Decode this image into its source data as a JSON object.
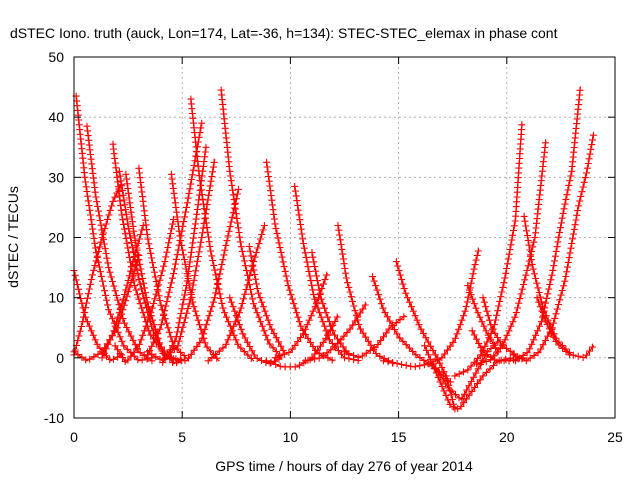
{
  "chart_data": {
    "type": "scatter",
    "title": "dSTEC Iono. truth (auck, Lon=174, Lat=-36, h=134): STEC-STEC_elemax in phase cont",
    "xlabel": "GPS time / hours of day 276 of year 2014",
    "ylabel": "dSTEC  / TECUs",
    "xlim": [
      0,
      25
    ],
    "ylim": [
      -10,
      50
    ],
    "xticks": [
      "0",
      "5",
      "10",
      "15",
      "20",
      "25"
    ],
    "yticks": [
      "-10",
      "0",
      "10",
      "20",
      "30",
      "40",
      "50"
    ],
    "grid": true,
    "marker": "plus",
    "color": "#ff0000",
    "series": [
      {
        "points": [
          [
            0.1,
            43.5
          ],
          [
            0.5,
            30
          ],
          [
            1.0,
            18
          ],
          [
            1.6,
            8
          ],
          [
            2.3,
            2
          ],
          [
            3.0,
            -0.5
          ],
          [
            3.6,
            0
          ]
        ]
      },
      {
        "points": [
          [
            0.0,
            0.5
          ],
          [
            0.4,
            6
          ],
          [
            0.8,
            13
          ],
          [
            1.3,
            20
          ],
          [
            1.8,
            26
          ],
          [
            2.2,
            29
          ]
        ]
      },
      {
        "points": [
          [
            0.0,
            14.5
          ],
          [
            0.5,
            7
          ],
          [
            1.1,
            2
          ],
          [
            1.7,
            -0.5
          ],
          [
            2.2,
            0.5
          ]
        ]
      },
      {
        "points": [
          [
            0.6,
            38.5
          ],
          [
            1.0,
            27
          ],
          [
            1.6,
            15
          ],
          [
            2.3,
            6
          ],
          [
            3.0,
            1
          ],
          [
            3.6,
            -0.5
          ]
        ]
      },
      {
        "points": [
          [
            0.0,
            1
          ],
          [
            0.6,
            -0.5
          ],
          [
            1.3,
            1
          ],
          [
            2.0,
            5
          ],
          [
            2.6,
            12
          ],
          [
            3.0,
            17
          ]
        ]
      },
      {
        "points": [
          [
            1.8,
            35.5
          ],
          [
            2.2,
            24
          ],
          [
            2.8,
            12
          ],
          [
            3.5,
            4
          ],
          [
            4.2,
            0.5
          ],
          [
            4.8,
            -0.5
          ]
        ]
      },
      {
        "points": [
          [
            1.3,
            0
          ],
          [
            1.8,
            4
          ],
          [
            2.3,
            10
          ],
          [
            2.8,
            17
          ],
          [
            3.2,
            22
          ]
        ]
      },
      {
        "points": [
          [
            2.4,
            30.5
          ],
          [
            2.8,
            20
          ],
          [
            3.4,
            9
          ],
          [
            4.0,
            2
          ],
          [
            4.6,
            -1
          ],
          [
            5.1,
            -0.3
          ]
        ]
      },
      {
        "points": [
          [
            3.0,
            31.5
          ],
          [
            3.4,
            20
          ],
          [
            4.0,
            9
          ],
          [
            4.6,
            2
          ],
          [
            5.2,
            0
          ]
        ]
      },
      {
        "points": [
          [
            1.9,
            2
          ],
          [
            2.4,
            -0.8
          ],
          [
            3.0,
            2
          ],
          [
            3.6,
            8
          ],
          [
            4.2,
            16
          ],
          [
            4.6,
            23
          ]
        ]
      },
      {
        "points": [
          [
            2.1,
            31
          ],
          [
            2.5,
            22
          ],
          [
            3.0,
            13
          ],
          [
            3.6,
            5
          ],
          [
            4.2,
            0
          ]
        ]
      },
      {
        "points": [
          [
            4.5,
            30.5
          ],
          [
            4.9,
            20
          ],
          [
            5.5,
            9
          ],
          [
            6.1,
            2
          ],
          [
            6.7,
            -0.5
          ]
        ]
      },
      {
        "points": [
          [
            3.4,
            0.5
          ],
          [
            4.0,
            5
          ],
          [
            4.6,
            14
          ],
          [
            5.2,
            25
          ],
          [
            5.6,
            33
          ],
          [
            5.9,
            39
          ]
        ]
      },
      {
        "points": [
          [
            4.1,
            -0.8
          ],
          [
            4.7,
            3
          ],
          [
            5.2,
            12
          ],
          [
            5.6,
            22
          ],
          [
            6.1,
            35
          ]
        ]
      },
      {
        "points": [
          [
            5.4,
            43
          ],
          [
            5.8,
            30
          ],
          [
            6.3,
            18
          ],
          [
            6.9,
            8
          ],
          [
            7.6,
            2
          ],
          [
            8.3,
            -0.5
          ]
        ]
      },
      {
        "points": [
          [
            3.4,
            1
          ],
          [
            4.1,
            -0.5
          ],
          [
            4.8,
            2
          ],
          [
            5.4,
            10
          ],
          [
            5.9,
            20
          ],
          [
            6.5,
            33
          ]
        ]
      },
      {
        "points": [
          [
            6.8,
            44.5
          ],
          [
            7.2,
            31
          ],
          [
            7.7,
            19
          ],
          [
            8.3,
            9
          ],
          [
            9.0,
            2.5
          ],
          [
            9.6,
            0
          ]
        ]
      },
      {
        "points": [
          [
            4.5,
            0
          ],
          [
            5.2,
            -0.5
          ],
          [
            5.9,
            3
          ],
          [
            6.5,
            10
          ],
          [
            7.1,
            20
          ],
          [
            7.6,
            28
          ]
        ]
      },
      {
        "points": [
          [
            7.2,
            10
          ],
          [
            7.8,
            4
          ],
          [
            8.4,
            0
          ],
          [
            9.0,
            -1
          ],
          [
            9.6,
            0
          ]
        ]
      },
      {
        "points": [
          [
            8.1,
            18.5
          ],
          [
            8.5,
            11
          ],
          [
            9.1,
            5
          ],
          [
            9.7,
            1
          ]
        ]
      },
      {
        "points": [
          [
            8.9,
            32.5
          ],
          [
            9.3,
            22
          ],
          [
            9.9,
            12
          ],
          [
            10.5,
            5
          ],
          [
            11.2,
            1
          ],
          [
            12.0,
            -0.5
          ]
        ]
      },
      {
        "points": [
          [
            6.2,
            -0.5
          ],
          [
            7.0,
            2
          ],
          [
            7.7,
            8
          ],
          [
            8.3,
            16
          ],
          [
            8.8,
            22
          ]
        ]
      },
      {
        "points": [
          [
            10.2,
            28.5
          ],
          [
            10.6,
            19
          ],
          [
            11.1,
            10
          ],
          [
            11.8,
            3
          ],
          [
            12.5,
            0
          ],
          [
            13.2,
            -0.5
          ]
        ]
      },
      {
        "points": [
          [
            11.0,
            17.5
          ],
          [
            11.4,
            10
          ],
          [
            12.0,
            4
          ],
          [
            12.7,
            0.5
          ]
        ]
      },
      {
        "points": [
          [
            12.2,
            22
          ],
          [
            12.6,
            13
          ],
          [
            13.2,
            5
          ],
          [
            14.0,
            0.5
          ],
          [
            14.8,
            -1
          ]
        ]
      },
      {
        "points": [
          [
            8.9,
            -0.5
          ],
          [
            9.6,
            -1.5
          ],
          [
            10.3,
            -1.5
          ],
          [
            11.0,
            0
          ],
          [
            11.6,
            3
          ],
          [
            12.2,
            7
          ]
        ]
      },
      {
        "points": [
          [
            9.3,
            0
          ],
          [
            10.0,
            1
          ],
          [
            10.6,
            4
          ],
          [
            11.2,
            9
          ],
          [
            11.7,
            14
          ]
        ]
      },
      {
        "points": [
          [
            13.8,
            13.5
          ],
          [
            14.3,
            8
          ],
          [
            15.0,
            3.5
          ],
          [
            15.8,
            0.5
          ],
          [
            16.6,
            -1.5
          ],
          [
            17.4,
            -4
          ]
        ]
      },
      {
        "points": [
          [
            10.7,
            -0.5
          ],
          [
            11.4,
            0
          ],
          [
            12.1,
            2
          ],
          [
            12.8,
            5
          ],
          [
            13.5,
            9
          ]
        ]
      },
      {
        "points": [
          [
            14.9,
            16
          ],
          [
            15.3,
            11
          ],
          [
            16.0,
            5
          ],
          [
            16.7,
            0.5
          ],
          [
            17.2,
            -3
          ],
          [
            17.6,
            -8.5
          ]
        ]
      },
      {
        "points": [
          [
            12.5,
            1
          ],
          [
            13.2,
            0
          ],
          [
            14.0,
            2
          ],
          [
            14.6,
            5
          ],
          [
            15.3,
            7
          ]
        ]
      },
      {
        "points": [
          [
            14.3,
            -0.5
          ],
          [
            15.0,
            -1
          ],
          [
            15.7,
            -1.5
          ],
          [
            16.4,
            -1
          ],
          [
            17.0,
            0
          ],
          [
            17.6,
            3
          ],
          [
            18.1,
            8
          ],
          [
            18.5,
            15
          ],
          [
            18.7,
            18
          ]
        ]
      },
      {
        "points": [
          [
            16.2,
            2
          ],
          [
            16.8,
            -3
          ],
          [
            17.4,
            -8
          ],
          [
            17.8,
            -8.5
          ],
          [
            18.3,
            -6
          ],
          [
            18.9,
            -3
          ],
          [
            19.6,
            -0.5
          ],
          [
            20.3,
            0
          ]
        ]
      },
      {
        "points": [
          [
            16.6,
            -1
          ],
          [
            17.3,
            -5
          ],
          [
            17.9,
            -7
          ],
          [
            18.5,
            -3
          ],
          [
            19.1,
            1
          ],
          [
            19.7,
            3
          ]
        ]
      },
      {
        "points": [
          [
            18.2,
            12
          ],
          [
            18.6,
            8
          ],
          [
            19.1,
            4
          ],
          [
            19.6,
            1
          ]
        ]
      },
      {
        "points": [
          [
            18.9,
            10
          ],
          [
            19.3,
            5
          ],
          [
            19.8,
            2
          ],
          [
            20.4,
            0.5
          ]
        ]
      },
      {
        "points": [
          [
            17.6,
            -3
          ],
          [
            18.2,
            -2
          ],
          [
            18.8,
            0.5
          ],
          [
            19.4,
            5
          ],
          [
            19.9,
            13
          ],
          [
            20.4,
            23
          ],
          [
            20.7,
            39
          ]
        ]
      },
      {
        "points": [
          [
            18.6,
            -1
          ],
          [
            19.2,
            -0.5
          ],
          [
            19.8,
            2
          ],
          [
            20.4,
            7
          ],
          [
            20.9,
            14
          ],
          [
            21.3,
            20
          ],
          [
            21.8,
            36
          ]
        ]
      },
      {
        "points": [
          [
            18.4,
            4.5
          ],
          [
            18.9,
            1
          ],
          [
            19.5,
            -0.5
          ],
          [
            20.1,
            -0.5
          ],
          [
            20.8,
            0
          ]
        ]
      },
      {
        "points": [
          [
            20.8,
            23.5
          ],
          [
            21.2,
            15
          ],
          [
            21.7,
            8
          ],
          [
            22.3,
            3
          ],
          [
            23.0,
            0.5
          ],
          [
            23.6,
            0
          ],
          [
            24.0,
            2
          ]
        ]
      },
      {
        "points": [
          [
            20.4,
            -0.5
          ],
          [
            21.0,
            1
          ],
          [
            21.6,
            6
          ],
          [
            22.1,
            14
          ],
          [
            22.6,
            24
          ],
          [
            23.0,
            31
          ],
          [
            23.4,
            45
          ]
        ]
      },
      {
        "points": [
          [
            20.3,
            0.5
          ],
          [
            20.9,
            -0.5
          ],
          [
            21.5,
            1
          ],
          [
            22.1,
            5
          ],
          [
            22.7,
            13
          ],
          [
            23.3,
            25
          ],
          [
            23.7,
            31
          ],
          [
            24.0,
            37
          ]
        ]
      },
      {
        "points": [
          [
            21.4,
            10
          ],
          [
            21.8,
            6
          ],
          [
            22.3,
            2.5
          ],
          [
            22.9,
            0.5
          ]
        ]
      }
    ]
  }
}
